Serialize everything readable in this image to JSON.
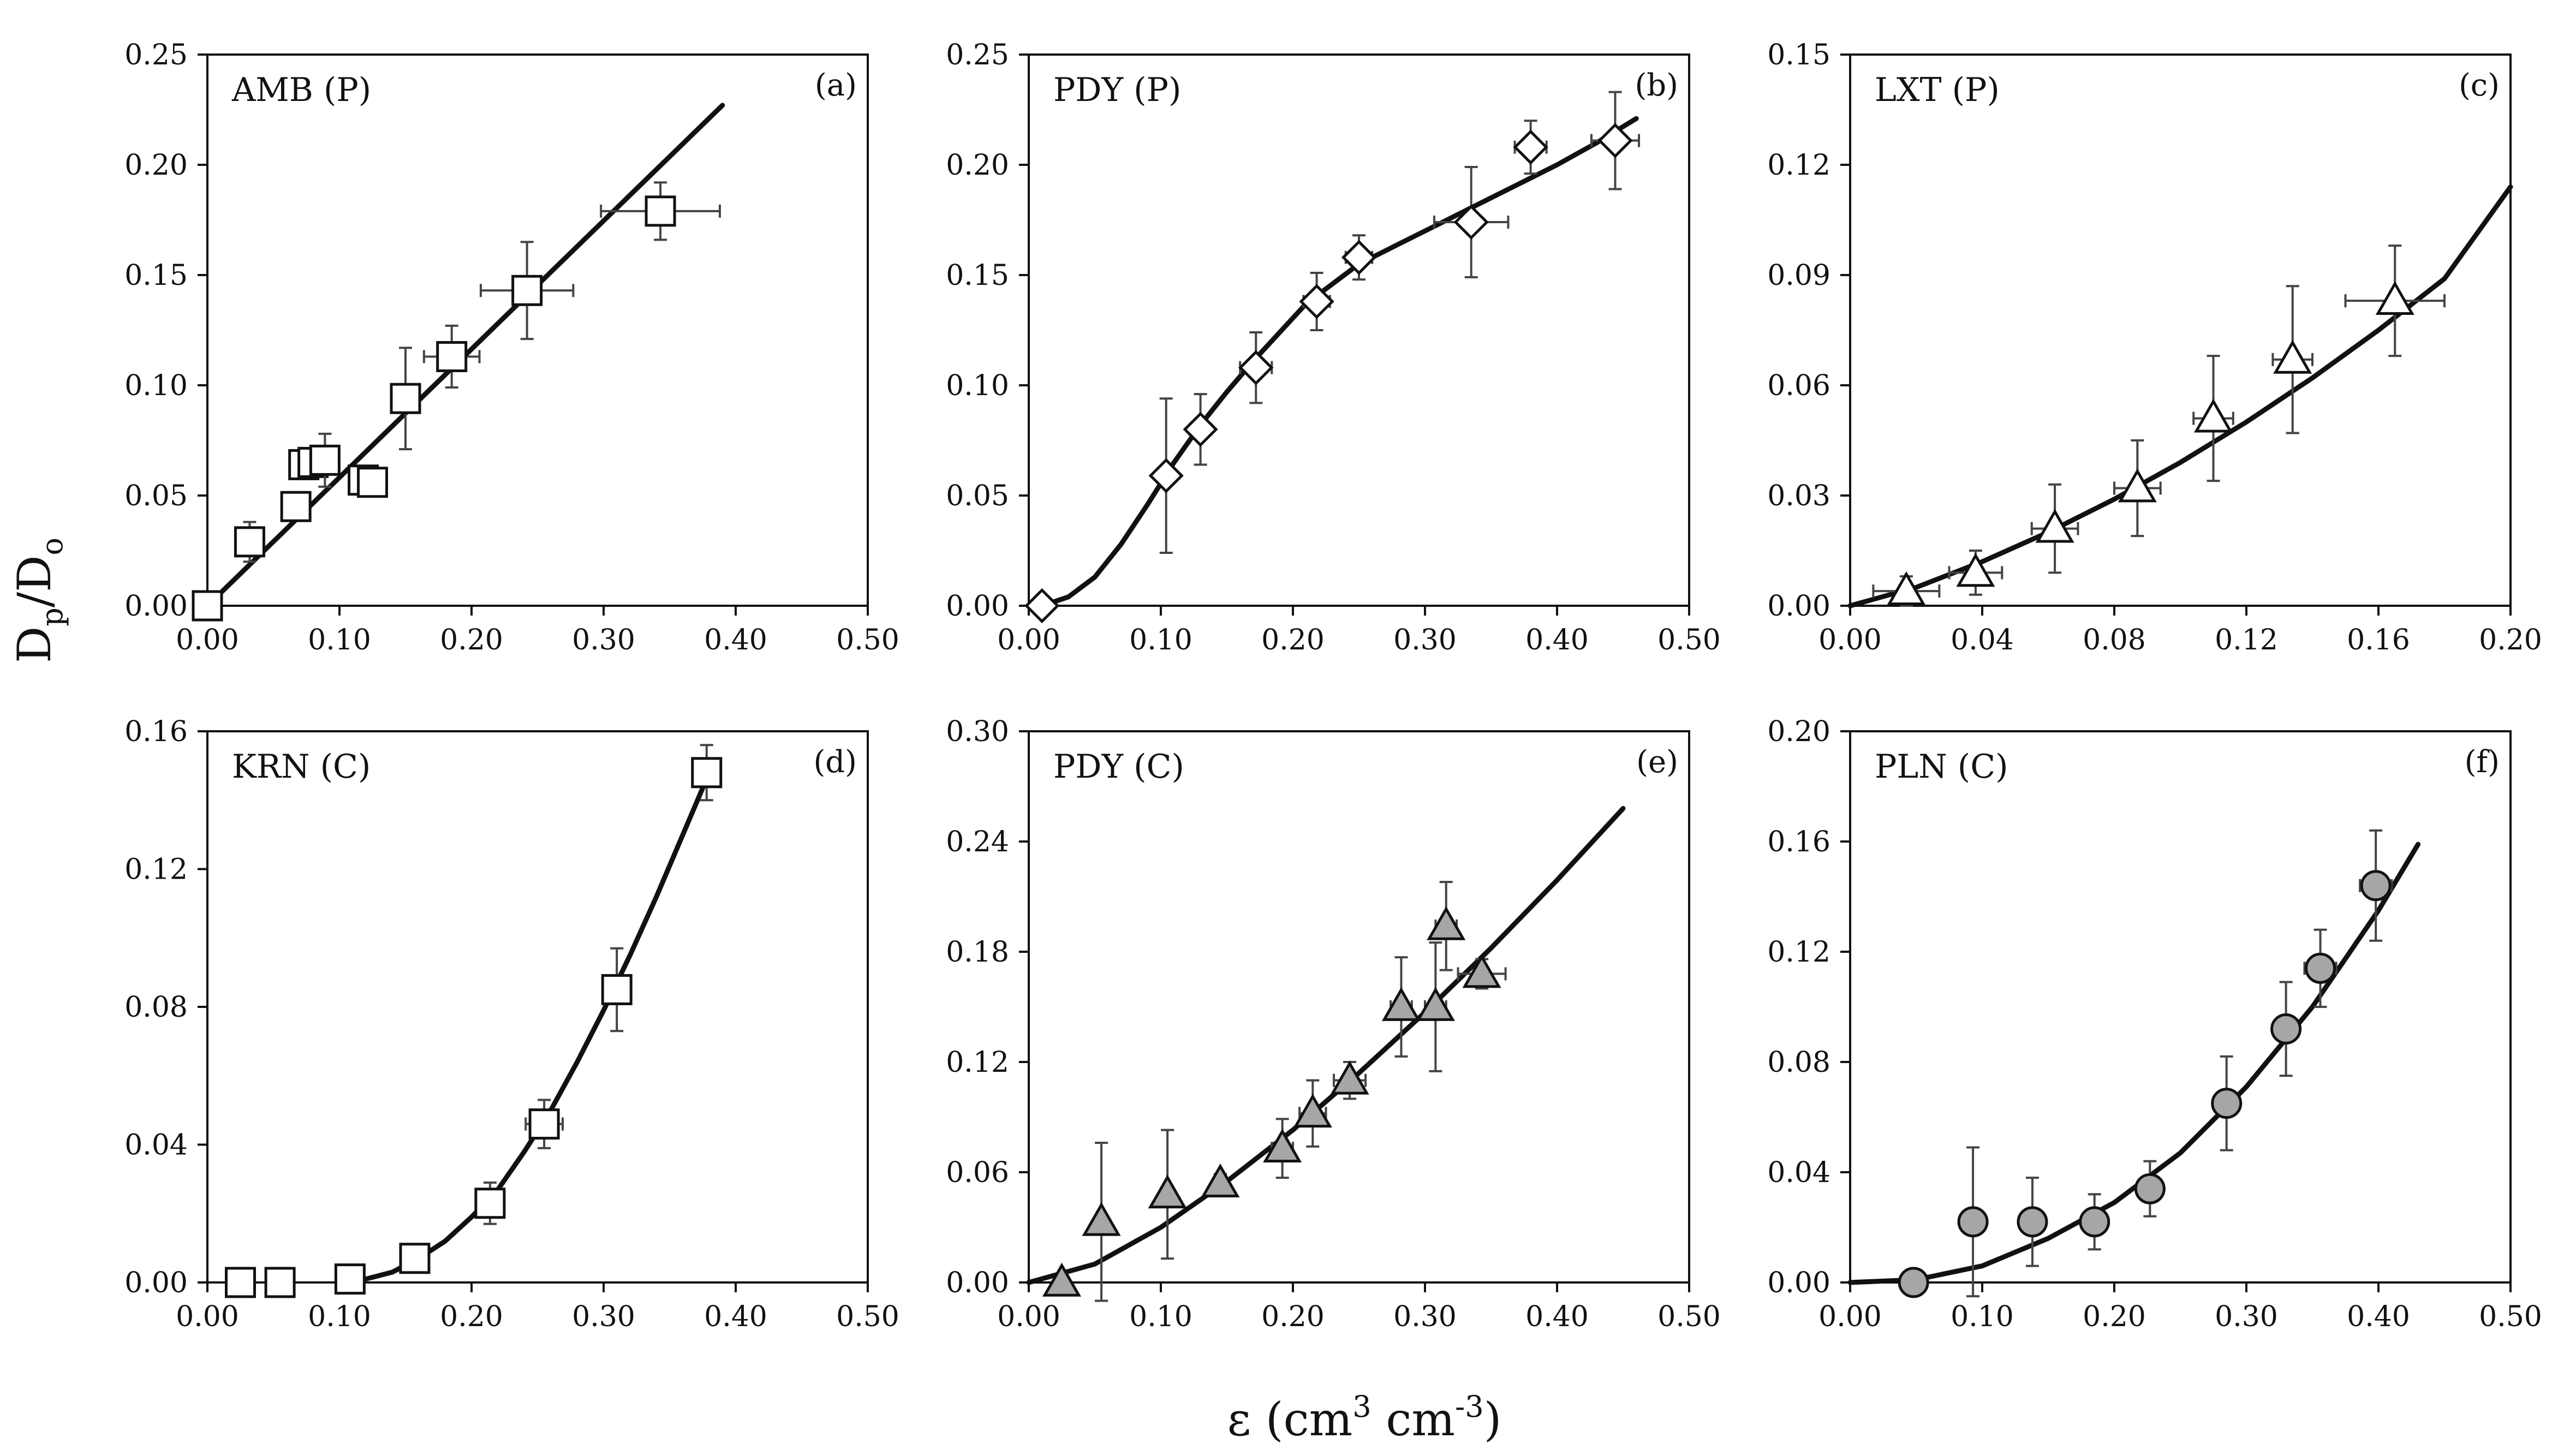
{
  "x_axis_label": {
    "base": "ε (cm",
    "sup1": "3",
    "mid": " cm",
    "sup2": "-3",
    "end": ")"
  },
  "y_axis_label": {
    "D": "D",
    "p": "p",
    "slash": "/D",
    "o": "o"
  },
  "chart_data": [
    {
      "type": "scatter",
      "panel": "a",
      "letter": "(a)",
      "title": "AMB (P)",
      "marker": "square",
      "marker_fill": "#ffffff",
      "xlim": [
        0,
        0.5
      ],
      "ylim": [
        0,
        0.25
      ],
      "xticks": [
        "0.00",
        "0.10",
        "0.20",
        "0.30",
        "0.40",
        "0.50"
      ],
      "yticks": [
        "0.00",
        "0.05",
        "0.10",
        "0.15",
        "0.20",
        "0.25"
      ],
      "points": [
        {
          "x": 0.0,
          "y": 0.0,
          "xerr": 0.0,
          "yerr": 0.0
        },
        {
          "x": 0.032,
          "y": 0.029,
          "xerr": 0.006,
          "yerr": 0.009
        },
        {
          "x": 0.067,
          "y": 0.045,
          "xerr": 0.008,
          "yerr": 0.005
        },
        {
          "x": 0.073,
          "y": 0.064,
          "xerr": 0.006,
          "yerr": 0.006
        },
        {
          "x": 0.08,
          "y": 0.065,
          "xerr": 0.006,
          "yerr": 0.006
        },
        {
          "x": 0.089,
          "y": 0.066,
          "xerr": 0.006,
          "yerr": 0.012
        },
        {
          "x": 0.118,
          "y": 0.057,
          "xerr": 0.01,
          "yerr": 0.005
        },
        {
          "x": 0.125,
          "y": 0.056,
          "xerr": 0.01,
          "yerr": 0.005
        },
        {
          "x": 0.15,
          "y": 0.094,
          "xerr": 0.008,
          "yerr": 0.023
        },
        {
          "x": 0.185,
          "y": 0.113,
          "xerr": 0.021,
          "yerr": 0.014
        },
        {
          "x": 0.242,
          "y": 0.143,
          "xerr": 0.035,
          "yerr": 0.022
        },
        {
          "x": 0.343,
          "y": 0.179,
          "xerr": 0.045,
          "yerr": 0.013
        }
      ],
      "fit": {
        "x": [
          0.0,
          0.39
        ],
        "y": [
          0.0,
          0.227
        ]
      }
    },
    {
      "type": "scatter",
      "panel": "b",
      "letter": "(b)",
      "title": "PDY (P)",
      "marker": "diamond",
      "marker_fill": "#ffffff",
      "xlim": [
        0,
        0.5
      ],
      "ylim": [
        0,
        0.25
      ],
      "xticks": [
        "0.00",
        "0.10",
        "0.20",
        "0.30",
        "0.40",
        "0.50"
      ],
      "yticks": [
        "0.00",
        "0.05",
        "0.10",
        "0.15",
        "0.20",
        "0.25"
      ],
      "points": [
        {
          "x": 0.01,
          "y": 0.0,
          "xerr": 0.0,
          "yerr": 0.0
        },
        {
          "x": 0.104,
          "y": 0.059,
          "xerr": 0.005,
          "yerr": 0.035
        },
        {
          "x": 0.13,
          "y": 0.08,
          "xerr": 0.008,
          "yerr": 0.016
        },
        {
          "x": 0.172,
          "y": 0.108,
          "xerr": 0.012,
          "yerr": 0.016
        },
        {
          "x": 0.218,
          "y": 0.138,
          "xerr": 0.01,
          "yerr": 0.013
        },
        {
          "x": 0.25,
          "y": 0.158,
          "xerr": 0.01,
          "yerr": 0.01
        },
        {
          "x": 0.335,
          "y": 0.174,
          "xerr": 0.028,
          "yerr": 0.025
        },
        {
          "x": 0.38,
          "y": 0.208,
          "xerr": 0.012,
          "yerr": 0.012
        },
        {
          "x": 0.444,
          "y": 0.211,
          "xerr": 0.018,
          "yerr": 0.022
        }
      ],
      "fit": {
        "x": [
          0.01,
          0.03,
          0.05,
          0.07,
          0.09,
          0.11,
          0.13,
          0.15,
          0.17,
          0.19,
          0.21,
          0.23,
          0.25,
          0.28,
          0.31,
          0.34,
          0.37,
          0.4,
          0.43,
          0.46
        ],
        "y": [
          0.0,
          0.004,
          0.013,
          0.028,
          0.046,
          0.065,
          0.082,
          0.097,
          0.111,
          0.124,
          0.137,
          0.146,
          0.155,
          0.164,
          0.173,
          0.182,
          0.191,
          0.2,
          0.21,
          0.221
        ]
      }
    },
    {
      "type": "scatter",
      "panel": "c",
      "letter": "(c)",
      "title": "LXT (P)",
      "marker": "triangle",
      "marker_fill": "#ffffff",
      "xlim": [
        0,
        0.2
      ],
      "ylim": [
        0,
        0.15
      ],
      "xticks": [
        "0.00",
        "0.04",
        "0.08",
        "0.12",
        "0.16",
        "0.20"
      ],
      "yticks": [
        "0.00",
        "0.03",
        "0.06",
        "0.09",
        "0.12",
        "0.15"
      ],
      "points": [
        {
          "x": 0.017,
          "y": 0.004,
          "xerr": 0.01,
          "yerr": 0.004
        },
        {
          "x": 0.038,
          "y": 0.009,
          "xerr": 0.008,
          "yerr": 0.006
        },
        {
          "x": 0.062,
          "y": 0.021,
          "xerr": 0.007,
          "yerr": 0.012
        },
        {
          "x": 0.087,
          "y": 0.032,
          "xerr": 0.007,
          "yerr": 0.013
        },
        {
          "x": 0.11,
          "y": 0.051,
          "xerr": 0.006,
          "yerr": 0.017
        },
        {
          "x": 0.134,
          "y": 0.067,
          "xerr": 0.006,
          "yerr": 0.02
        },
        {
          "x": 0.165,
          "y": 0.083,
          "xerr": 0.015,
          "yerr": 0.015
        }
      ],
      "fit": {
        "x": [
          0.0,
          0.02,
          0.04,
          0.06,
          0.08,
          0.1,
          0.12,
          0.14,
          0.16,
          0.18,
          0.2
        ],
        "y": [
          0.0,
          0.005,
          0.012,
          0.02,
          0.029,
          0.039,
          0.05,
          0.062,
          0.075,
          0.089,
          0.114
        ]
      }
    },
    {
      "type": "scatter",
      "panel": "d",
      "letter": "(d)",
      "title": "KRN (C)",
      "marker": "square",
      "marker_fill": "#ffffff",
      "xlim": [
        0,
        0.5
      ],
      "ylim": [
        0,
        0.16
      ],
      "xticks": [
        "0.00",
        "0.10",
        "0.20",
        "0.30",
        "0.40",
        "0.50"
      ],
      "yticks": [
        "0.00",
        "0.04",
        "0.08",
        "0.12",
        "0.16"
      ],
      "points": [
        {
          "x": 0.025,
          "y": 0.0,
          "xerr": 0.0,
          "yerr": 0.0
        },
        {
          "x": 0.055,
          "y": 0.0,
          "xerr": 0.0,
          "yerr": 0.0
        },
        {
          "x": 0.108,
          "y": 0.001,
          "xerr": 0.005,
          "yerr": 0.001
        },
        {
          "x": 0.157,
          "y": 0.007,
          "xerr": 0.005,
          "yerr": 0.002
        },
        {
          "x": 0.214,
          "y": 0.023,
          "xerr": 0.008,
          "yerr": 0.006
        },
        {
          "x": 0.255,
          "y": 0.046,
          "xerr": 0.014,
          "yerr": 0.007
        },
        {
          "x": 0.31,
          "y": 0.085,
          "xerr": 0.006,
          "yerr": 0.012
        },
        {
          "x": 0.378,
          "y": 0.148,
          "xerr": 0.01,
          "yerr": 0.008
        }
      ],
      "fit": {
        "x": [
          0.1,
          0.12,
          0.14,
          0.16,
          0.18,
          0.2,
          0.22,
          0.24,
          0.26,
          0.28,
          0.3,
          0.32,
          0.34,
          0.36,
          0.38
        ],
        "y": [
          0.0,
          0.001,
          0.003,
          0.007,
          0.012,
          0.019,
          0.027,
          0.038,
          0.05,
          0.064,
          0.079,
          0.095,
          0.112,
          0.13,
          0.148
        ]
      }
    },
    {
      "type": "scatter",
      "panel": "e",
      "letter": "(e)",
      "title": "PDY (C)",
      "marker": "triangle",
      "marker_fill": "#a6a6a6",
      "xlim": [
        0,
        0.5
      ],
      "ylim": [
        0,
        0.3
      ],
      "xticks": [
        "0.00",
        "0.10",
        "0.20",
        "0.30",
        "0.40",
        "0.50"
      ],
      "yticks": [
        "0.00",
        "0.06",
        "0.12",
        "0.18",
        "0.24",
        "0.30"
      ],
      "points": [
        {
          "x": 0.025,
          "y": 0.0,
          "xerr": 0.0,
          "yerr": 0.0
        },
        {
          "x": 0.055,
          "y": 0.033,
          "xerr": 0.005,
          "yerr": 0.043
        },
        {
          "x": 0.105,
          "y": 0.048,
          "xerr": 0.005,
          "yerr": 0.035
        },
        {
          "x": 0.145,
          "y": 0.054,
          "xerr": 0.005,
          "yerr": 0.005
        },
        {
          "x": 0.192,
          "y": 0.073,
          "xerr": 0.008,
          "yerr": 0.016
        },
        {
          "x": 0.215,
          "y": 0.092,
          "xerr": 0.01,
          "yerr": 0.018
        },
        {
          "x": 0.243,
          "y": 0.11,
          "xerr": 0.012,
          "yerr": 0.01
        },
        {
          "x": 0.282,
          "y": 0.15,
          "xerr": 0.008,
          "yerr": 0.027
        },
        {
          "x": 0.308,
          "y": 0.15,
          "xerr": 0.008,
          "yerr": 0.035
        },
        {
          "x": 0.316,
          "y": 0.194,
          "xerr": 0.008,
          "yerr": 0.024
        },
        {
          "x": 0.343,
          "y": 0.168,
          "xerr": 0.018,
          "yerr": 0.008
        }
      ],
      "fit": {
        "x": [
          0.0,
          0.05,
          0.1,
          0.15,
          0.2,
          0.25,
          0.3,
          0.35,
          0.4,
          0.45
        ],
        "y": [
          0.0,
          0.01,
          0.03,
          0.055,
          0.083,
          0.114,
          0.147,
          0.182,
          0.219,
          0.258
        ]
      }
    },
    {
      "type": "scatter",
      "panel": "f",
      "letter": "(f)",
      "title": "PLN (C)",
      "marker": "circle",
      "marker_fill": "#a6a6a6",
      "xlim": [
        0,
        0.5
      ],
      "ylim": [
        0,
        0.2
      ],
      "xticks": [
        "0.00",
        "0.10",
        "0.20",
        "0.30",
        "0.40",
        "0.50"
      ],
      "yticks": [
        "0.00",
        "0.04",
        "0.08",
        "0.12",
        "0.16",
        "0.20"
      ],
      "points": [
        {
          "x": 0.048,
          "y": 0.0,
          "xerr": 0.0,
          "yerr": 0.0
        },
        {
          "x": 0.093,
          "y": 0.022,
          "xerr": 0.0,
          "yerr": 0.027
        },
        {
          "x": 0.138,
          "y": 0.022,
          "xerr": 0.0,
          "yerr": 0.016
        },
        {
          "x": 0.185,
          "y": 0.022,
          "xerr": 0.005,
          "yerr": 0.01
        },
        {
          "x": 0.227,
          "y": 0.034,
          "xerr": 0.01,
          "yerr": 0.01
        },
        {
          "x": 0.285,
          "y": 0.065,
          "xerr": 0.005,
          "yerr": 0.017
        },
        {
          "x": 0.33,
          "y": 0.092,
          "xerr": 0.008,
          "yerr": 0.017
        },
        {
          "x": 0.356,
          "y": 0.114,
          "xerr": 0.012,
          "yerr": 0.014
        },
        {
          "x": 0.398,
          "y": 0.144,
          "xerr": 0.012,
          "yerr": 0.02
        }
      ],
      "fit": {
        "x": [
          0.0,
          0.05,
          0.1,
          0.15,
          0.2,
          0.25,
          0.3,
          0.35,
          0.4,
          0.43
        ],
        "y": [
          0.0,
          0.001,
          0.006,
          0.016,
          0.029,
          0.047,
          0.071,
          0.1,
          0.135,
          0.159
        ]
      }
    }
  ]
}
